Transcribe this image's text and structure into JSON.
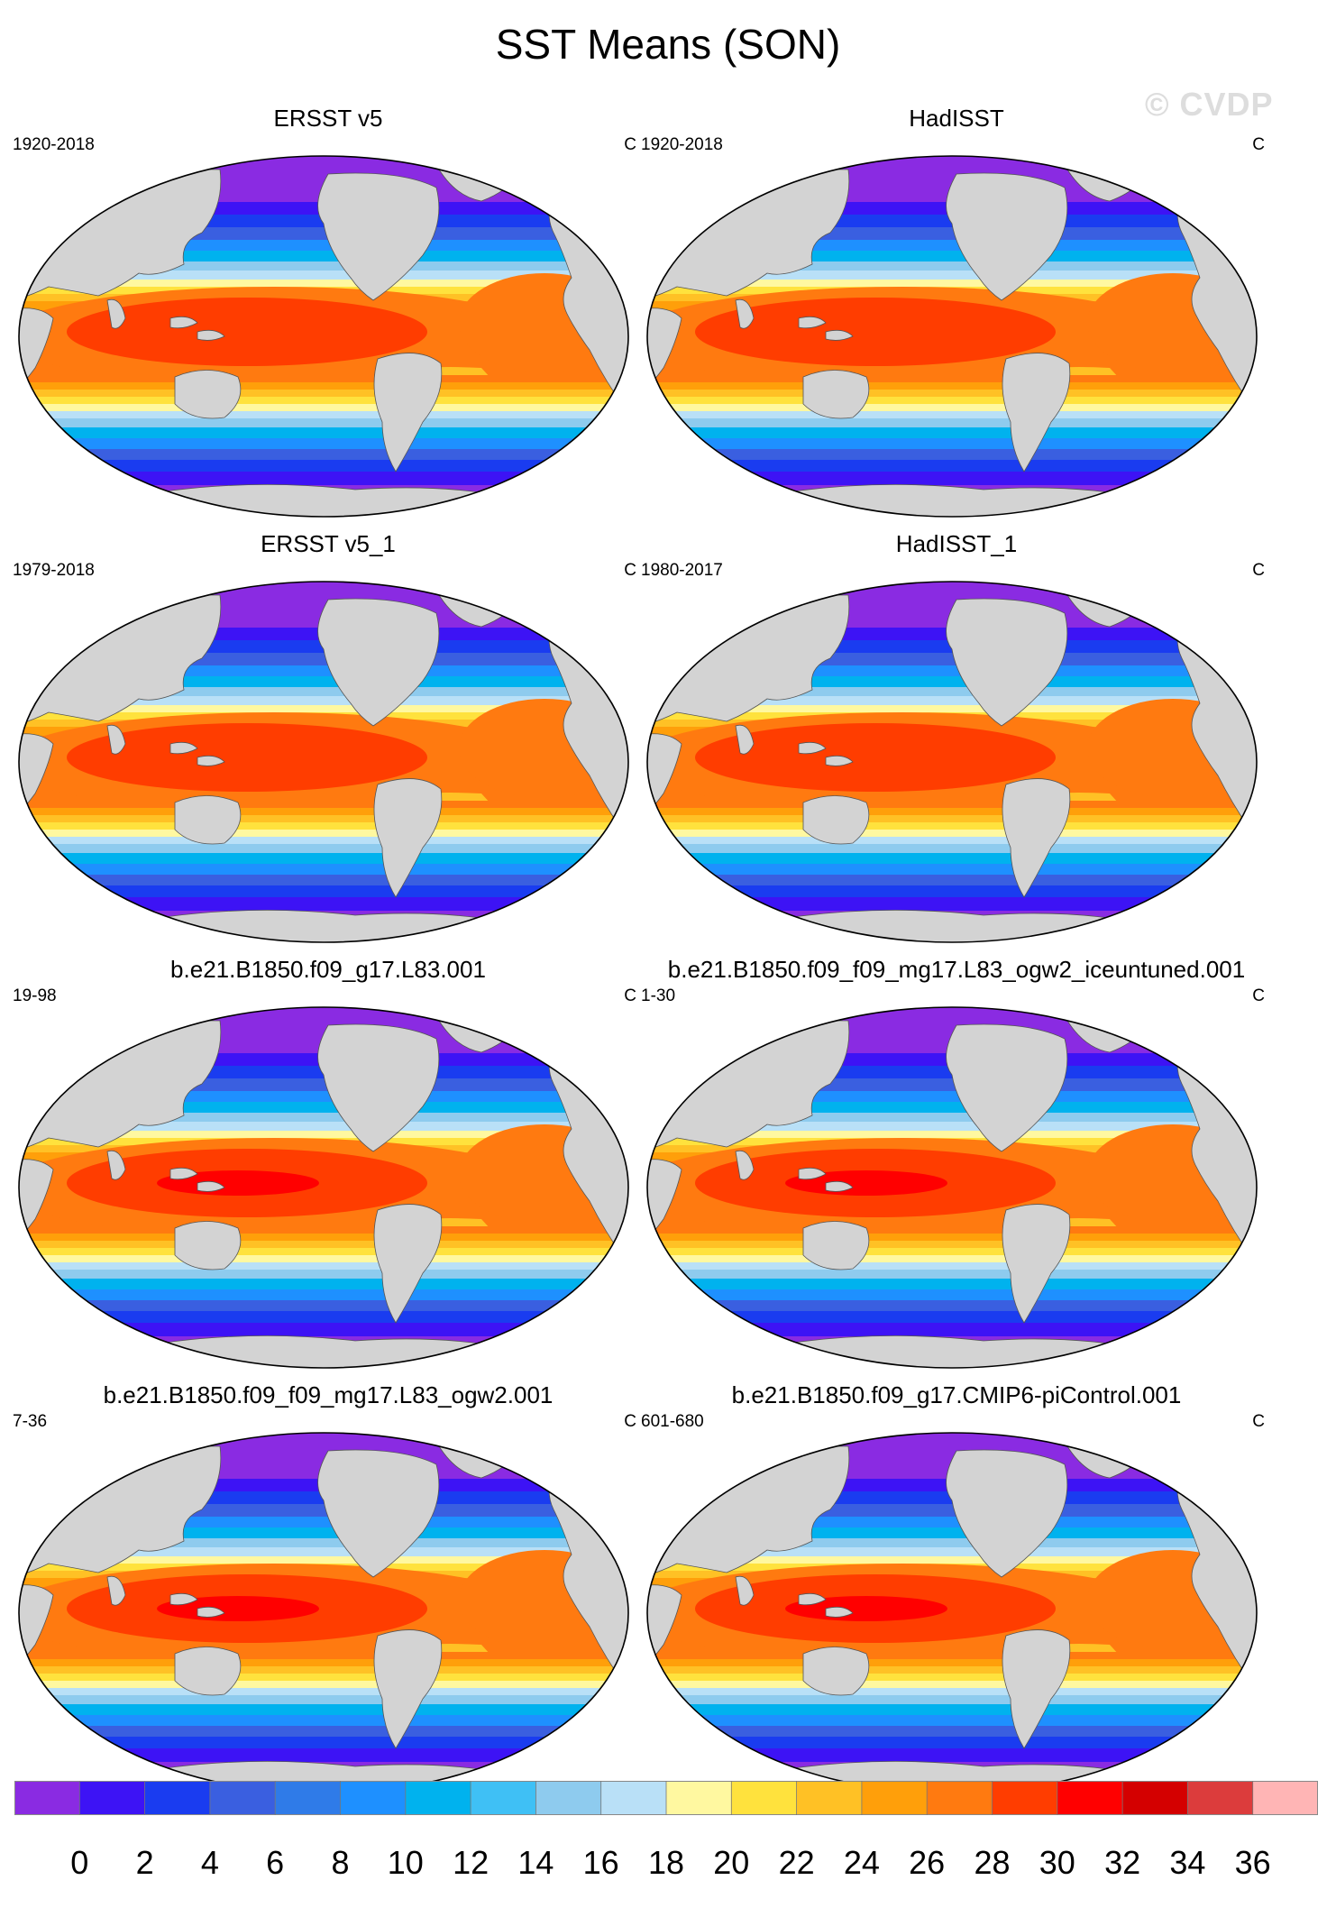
{
  "title": "SST Means (SON)",
  "watermark": "© CVDP",
  "panels": [
    {
      "title": "ERSST v5",
      "years": "1920-2018",
      "units": "C",
      "style": "obs"
    },
    {
      "title": "HadISST",
      "years": "1920-2018",
      "units": "C",
      "style": "obs"
    },
    {
      "title": "ERSST v5_1",
      "years": "1979-2018",
      "units": "C",
      "style": "obs"
    },
    {
      "title": "HadISST_1",
      "years": "1980-2017",
      "units": "C",
      "style": "obs"
    },
    {
      "title": "b.e21.B1850.f09_g17.L83.001",
      "years": "19-98",
      "units": "C",
      "style": "model"
    },
    {
      "title": "b.e21.B1850.f09_f09_mg17.L83_ogw2_iceuntuned.001",
      "years": "1-30",
      "units": "C",
      "style": "model"
    },
    {
      "title": "b.e21.B1850.f09_f09_mg17.L83_ogw2.001",
      "years": "7-36",
      "units": "C",
      "style": "model"
    },
    {
      "title": "b.e21.B1850.f09_g17.CMIP6-piControl.001",
      "years": "601-680",
      "units": "C",
      "style": "model"
    }
  ],
  "colorbar": {
    "labels": [
      "0",
      "2",
      "4",
      "6",
      "8",
      "10",
      "12",
      "14",
      "16",
      "18",
      "20",
      "22",
      "24",
      "26",
      "28",
      "30",
      "32",
      "34",
      "36"
    ],
    "colors": [
      "#8a2be2",
      "#3d13f5",
      "#1a3cf0",
      "#3a5fe0",
      "#2f7be8",
      "#1e90ff",
      "#00b2ee",
      "#3fc0f5",
      "#8ecbee",
      "#b9e0f7",
      "#fff8a0",
      "#ffe23d",
      "#ffc125",
      "#ff9f0a",
      "#ff7a10",
      "#ff3d00",
      "#ff0000",
      "#d40000",
      "#dc3c3c",
      "#ffb5b5"
    ]
  }
}
